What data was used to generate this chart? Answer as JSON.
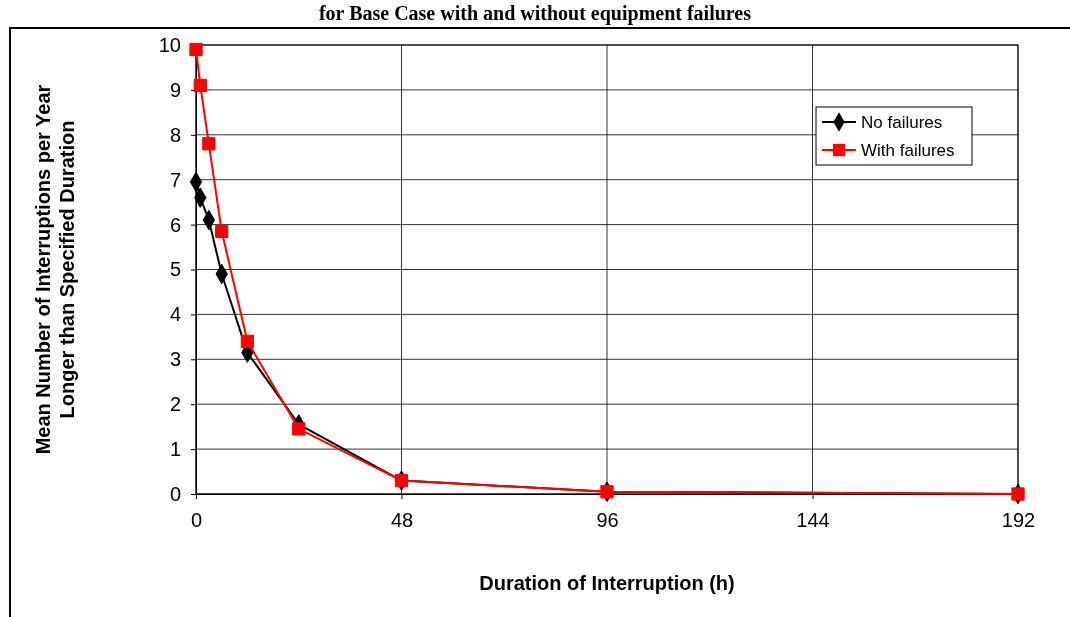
{
  "chart_data": {
    "type": "line",
    "title": "for Base Case with and without equipment failures",
    "xlabel": "Duration of Interruption (h)",
    "ylabel": "Mean Number of Interruptions per Year Longer than Specified Duration",
    "xlim": [
      0,
      192
    ],
    "xticks": [
      0,
      48,
      96,
      144,
      192
    ],
    "ylim": [
      0,
      10
    ],
    "yticks": [
      0,
      1,
      2,
      3,
      4,
      5,
      6,
      7,
      8,
      9,
      10
    ],
    "grid": true,
    "legend": "top right",
    "line_style": "solid",
    "series": [
      {
        "name": "No failures",
        "color": "#000000",
        "marker": "diamond",
        "x": [
          0,
          1,
          3,
          6,
          12,
          24,
          48,
          96,
          192
        ],
        "values": [
          6.95,
          6.6,
          6.1,
          4.9,
          3.15,
          1.55,
          0.3,
          0.05,
          0
        ]
      },
      {
        "name": "With failures",
        "color": "#ff0000",
        "marker": "square",
        "x": [
          0,
          1,
          3,
          6,
          12,
          24,
          48,
          96,
          192
        ],
        "values": [
          9.9,
          9.1,
          7.8,
          5.85,
          3.4,
          1.45,
          0.3,
          0.05,
          0
        ]
      }
    ]
  }
}
